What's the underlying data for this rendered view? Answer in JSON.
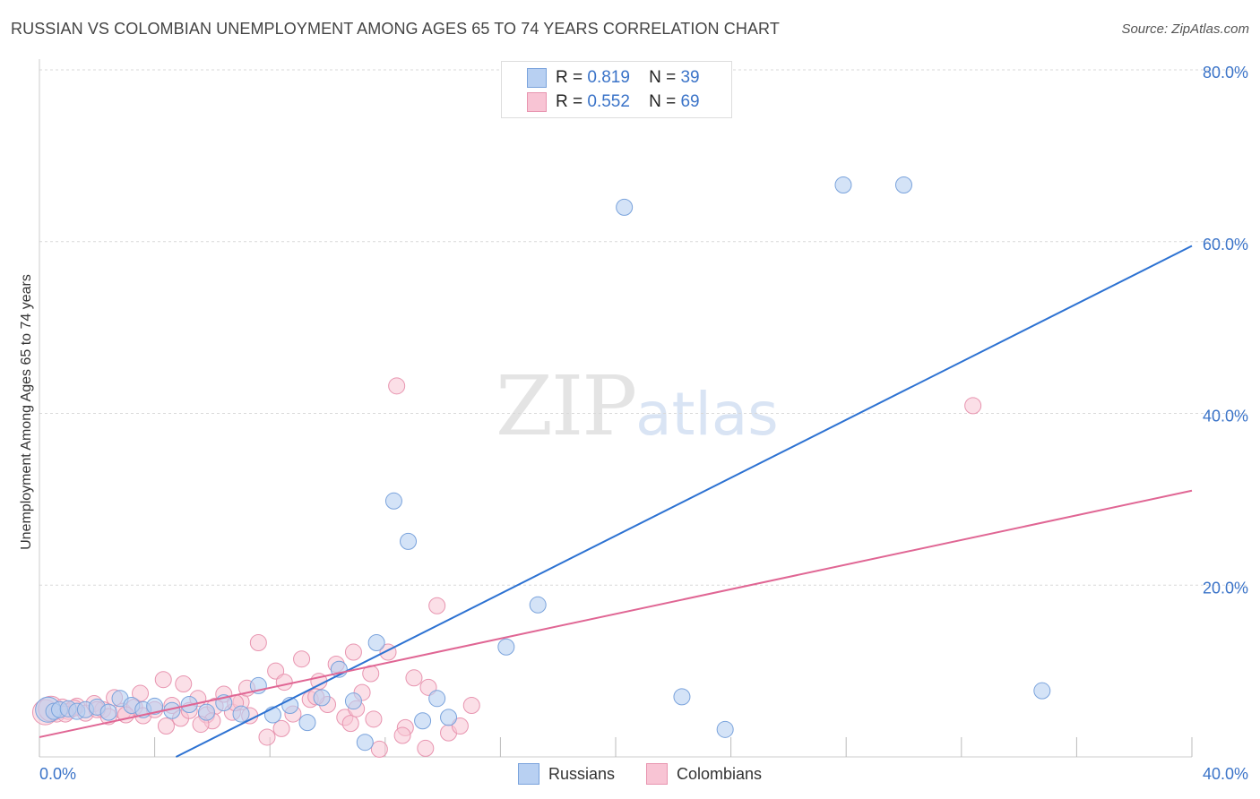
{
  "header": {
    "title": "RUSSIAN VS COLOMBIAN UNEMPLOYMENT AMONG AGES 65 TO 74 YEARS CORRELATION CHART",
    "source": "Source: ZipAtlas.com"
  },
  "watermark": {
    "zip": "ZIP",
    "atlas": "atlas"
  },
  "legend_top": {
    "rows": [
      {
        "r_label": "R =",
        "r_value": "0.819",
        "n_label": "N =",
        "n_value": "39"
      },
      {
        "r_label": "R =",
        "r_value": "0.552",
        "n_label": "N =",
        "n_value": "69"
      }
    ]
  },
  "bottom_legend": {
    "russians": "Russians",
    "colombians": "Colombians"
  },
  "colors": {
    "russians_fill": "#b8d0f2",
    "russians_stroke": "#7aa3dc",
    "russians_line": "#2d72d2",
    "colombians_fill": "#f8c4d4",
    "colombians_stroke": "#e895b0",
    "colombians_line": "#e06694",
    "tick_label": "#3a73c8",
    "grid": "#d9d9d9"
  },
  "chart_data": {
    "type": "scatter",
    "title": "RUSSIAN VS COLOMBIAN UNEMPLOYMENT AMONG AGES 65 TO 74 YEARS CORRELATION CHART",
    "xlabel": "",
    "ylabel": "Unemployment Among Ages 65 to 74 years",
    "xlim": [
      0,
      40
    ],
    "ylim": [
      0,
      80
    ],
    "x_tick_labels": [
      "0.0%",
      "40.0%"
    ],
    "y_ticks": [
      20,
      40,
      60,
      80
    ],
    "y_tick_labels": [
      "20.0%",
      "40.0%",
      "60.0%",
      "80.0%"
    ],
    "grid": true,
    "legend": "top-center",
    "series": [
      {
        "name": "Russians",
        "R": 0.819,
        "N": 39,
        "trend": {
          "x": [
            0,
            40
          ],
          "y": [
            -8.0,
            59.5
          ]
        },
        "points": [
          [
            0.3,
            5.5
          ],
          [
            0.5,
            5.3
          ],
          [
            0.7,
            5.5
          ],
          [
            1.0,
            5.6
          ],
          [
            1.3,
            5.3
          ],
          [
            1.6,
            5.5
          ],
          [
            2.0,
            5.8
          ],
          [
            2.4,
            5.2
          ],
          [
            2.8,
            6.8
          ],
          [
            3.2,
            6.0
          ],
          [
            3.6,
            5.5
          ],
          [
            4.0,
            5.9
          ],
          [
            4.6,
            5.4
          ],
          [
            5.2,
            6.1
          ],
          [
            5.8,
            5.2
          ],
          [
            6.4,
            6.3
          ],
          [
            7.0,
            5.0
          ],
          [
            7.6,
            8.3
          ],
          [
            8.1,
            4.9
          ],
          [
            8.7,
            6.0
          ],
          [
            9.3,
            4.0
          ],
          [
            9.8,
            6.9
          ],
          [
            10.4,
            10.2
          ],
          [
            10.9,
            6.5
          ],
          [
            11.3,
            1.7
          ],
          [
            11.7,
            13.3
          ],
          [
            12.3,
            29.8
          ],
          [
            12.8,
            25.1
          ],
          [
            13.3,
            4.2
          ],
          [
            13.8,
            6.8
          ],
          [
            14.2,
            4.6
          ],
          [
            16.2,
            12.8
          ],
          [
            17.3,
            17.7
          ],
          [
            20.3,
            64.0
          ],
          [
            22.3,
            7.0
          ],
          [
            23.8,
            3.2
          ],
          [
            27.9,
            66.6
          ],
          [
            30.0,
            66.6
          ],
          [
            34.8,
            7.7
          ]
        ]
      },
      {
        "name": "Colombians",
        "R": 0.552,
        "N": 69,
        "trend": {
          "x": [
            0,
            40
          ],
          "y": [
            2.3,
            31.0
          ]
        },
        "points": [
          [
            0.2,
            5.2
          ],
          [
            0.4,
            5.6
          ],
          [
            0.6,
            5.0
          ],
          [
            0.8,
            5.8
          ],
          [
            1.0,
            5.3
          ],
          [
            1.3,
            5.9
          ],
          [
            1.6,
            5.1
          ],
          [
            1.9,
            6.2
          ],
          [
            2.2,
            5.5
          ],
          [
            2.6,
            6.9
          ],
          [
            2.9,
            5.3
          ],
          [
            3.3,
            5.8
          ],
          [
            3.6,
            4.8
          ],
          [
            4.0,
            5.5
          ],
          [
            4.3,
            9.0
          ],
          [
            4.6,
            6.0
          ],
          [
            4.9,
            4.5
          ],
          [
            5.2,
            5.4
          ],
          [
            5.5,
            6.8
          ],
          [
            5.8,
            4.9
          ],
          [
            6.1,
            5.9
          ],
          [
            6.4,
            7.3
          ],
          [
            6.7,
            5.2
          ],
          [
            7.0,
            6.4
          ],
          [
            7.3,
            4.8
          ],
          [
            7.6,
            13.3
          ],
          [
            7.9,
            2.3
          ],
          [
            8.2,
            10.0
          ],
          [
            8.5,
            8.7
          ],
          [
            8.8,
            5.0
          ],
          [
            9.1,
            11.4
          ],
          [
            9.4,
            6.7
          ],
          [
            9.7,
            8.8
          ],
          [
            10.0,
            6.1
          ],
          [
            10.3,
            10.8
          ],
          [
            10.6,
            4.6
          ],
          [
            10.9,
            12.2
          ],
          [
            11.2,
            7.5
          ],
          [
            11.5,
            9.7
          ],
          [
            11.8,
            0.9
          ],
          [
            12.1,
            12.2
          ],
          [
            12.4,
            43.2
          ],
          [
            12.7,
            3.4
          ],
          [
            13.0,
            9.2
          ],
          [
            13.4,
            1.0
          ],
          [
            13.8,
            17.6
          ],
          [
            14.2,
            2.8
          ],
          [
            14.6,
            3.6
          ],
          [
            15.0,
            6.0
          ],
          [
            2.0,
            5.5
          ],
          [
            3.0,
            4.9
          ],
          [
            1.2,
            5.7
          ],
          [
            0.9,
            5.0
          ],
          [
            5.0,
            8.5
          ],
          [
            6.0,
            4.2
          ],
          [
            7.2,
            8.0
          ],
          [
            8.4,
            3.3
          ],
          [
            9.6,
            7.0
          ],
          [
            10.8,
            3.9
          ],
          [
            11.0,
            5.6
          ],
          [
            11.6,
            4.4
          ],
          [
            12.6,
            2.5
          ],
          [
            13.5,
            8.1
          ],
          [
            4.4,
            3.6
          ],
          [
            3.5,
            7.4
          ],
          [
            6.8,
            6.3
          ],
          [
            2.4,
            4.7
          ],
          [
            5.6,
            3.8
          ],
          [
            32.4,
            40.9
          ]
        ]
      }
    ]
  }
}
